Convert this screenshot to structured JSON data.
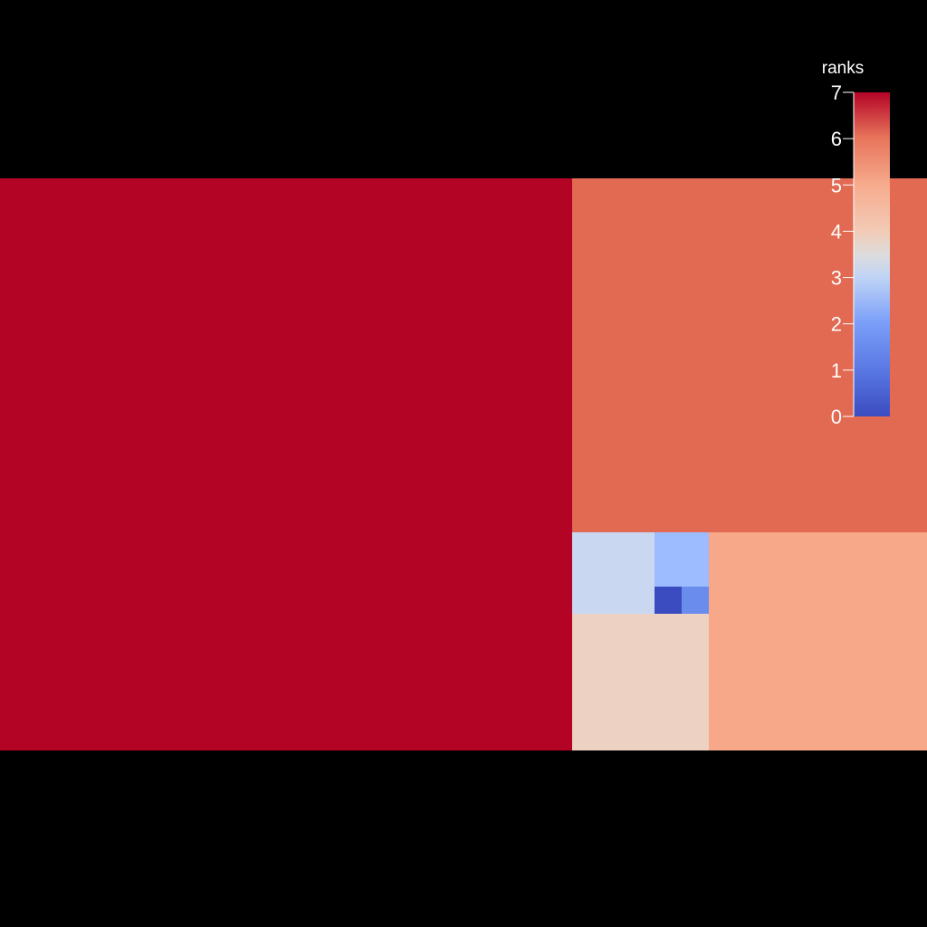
{
  "chart_data": {
    "type": "treemap",
    "colorscale": "coolwarm",
    "colorbar": {
      "title": "ranks",
      "range": [
        0,
        7
      ],
      "ticks": [
        0,
        1,
        2,
        3,
        4,
        5,
        6,
        7
      ]
    },
    "cells": [
      {
        "rank": 7
      },
      {
        "rank": 6
      },
      {
        "rank": 5
      },
      {
        "rank": 4
      },
      {
        "rank": 3
      },
      {
        "rank": 2
      },
      {
        "rank": 1
      },
      {
        "rank": 0
      }
    ]
  }
}
